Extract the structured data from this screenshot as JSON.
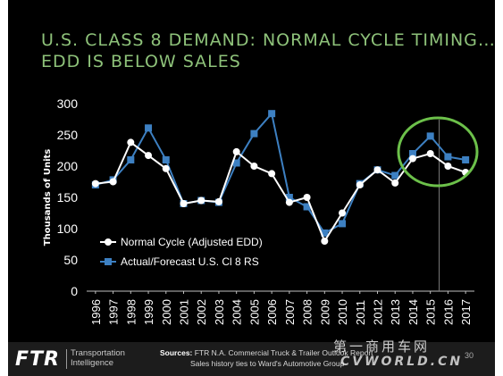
{
  "slide": {
    "title_line1": "U.S. CLASS 8 DEMAND: NORMAL CYCLE TIMING…",
    "title_line2": "EDD IS BELOW SALES",
    "page_number": "30"
  },
  "footer": {
    "logo": "FTR",
    "logo_sub_line1": "Transportation",
    "logo_sub_line2": "Intelligence",
    "sources_label": "Sources:",
    "sources_text": " FTR N.A. Commercial Truck & Trailer Outlook Report",
    "sources_line2": "Sales history ties to Ward's Automotive Group"
  },
  "watermark": {
    "line1": "第一商用车网",
    "line2": "CVWORLD.CN"
  },
  "colors": {
    "title": "#8ec27a",
    "actual_series": "#3d80c2",
    "normal_series": "#ffffff",
    "highlight_circle": "#6cc04a",
    "background": "#000000"
  },
  "chart_data": {
    "type": "line",
    "ylabel": "Thousands of Units",
    "xlabel": "",
    "ylim": [
      0,
      300
    ],
    "yticks": [
      0,
      50,
      100,
      150,
      200,
      250,
      300
    ],
    "x": [
      "1996",
      "1997",
      "1998",
      "1999",
      "2000",
      "2001",
      "2002",
      "2003",
      "2004",
      "2005",
      "2006",
      "2007",
      "2008",
      "2009",
      "2010",
      "2011",
      "2012",
      "2013",
      "2014",
      "2015",
      "2016",
      "2017"
    ],
    "series": [
      {
        "name": "Normal Cycle (Adjusted EDD)",
        "marker": "circle",
        "values": [
          172,
          175,
          238,
          217,
          196,
          140,
          145,
          143,
          223,
          200,
          188,
          142,
          150,
          80,
          125,
          170,
          194,
          173,
          212,
          220,
          200,
          190
        ]
      },
      {
        "name": "Actual/Forecast U.S. Cl 8 RS",
        "marker": "square",
        "values": [
          170,
          178,
          210,
          261,
          210,
          140,
          145,
          142,
          205,
          252,
          284,
          150,
          135,
          93,
          108,
          172,
          194,
          185,
          220,
          248,
          215,
          210
        ]
      }
    ],
    "grid": false,
    "legend_position": "bottom-left",
    "annotations": {
      "vertical_line_at": "2016",
      "highlight": "circle around 2014–2017"
    }
  }
}
